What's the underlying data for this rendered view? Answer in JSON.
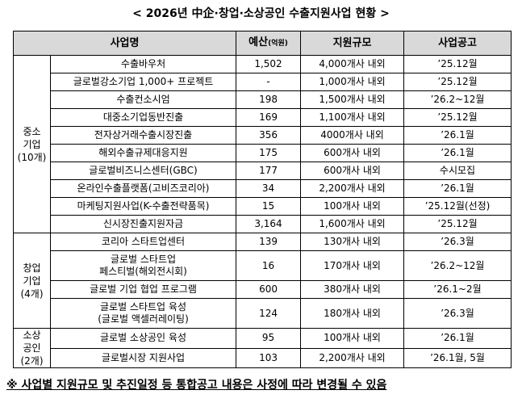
{
  "title": "< 2026년 中企·창업·소상공인 수출지원사업 현황 >",
  "table": {
    "header": [
      {
        "main": "사업명"
      },
      {
        "main": "예산",
        "unit": "(억원)"
      },
      {
        "main": "지원규모"
      },
      {
        "main": "사업공고"
      }
    ],
    "groups": [
      {
        "label": [
          "중소",
          "기업",
          "(10개)"
        ],
        "rows": [
          {
            "name": [
              "수출바우처"
            ],
            "budget": "1,502",
            "scale": "4,000개사 내외",
            "notice": "’25.12월"
          },
          {
            "name": [
              "글로벌강소기업 1,000+ 프로젝트"
            ],
            "budget": "-",
            "scale": "1,000개사 내외",
            "notice": "’25.12월"
          },
          {
            "name": [
              "수출컨소시엄"
            ],
            "budget": "198",
            "scale": "1,500개사 내외",
            "notice": "’26.2~12월"
          },
          {
            "name": [
              "대중소기업동반진출"
            ],
            "budget": "169",
            "scale": "1,100개사 내외",
            "notice": "’25.12월"
          },
          {
            "name": [
              "전자상거래수출시장진출"
            ],
            "budget": "356",
            "scale": "4000개사 내외",
            "notice": "’26.1월"
          },
          {
            "name": [
              "해외수출규제대응지원"
            ],
            "budget": "175",
            "scale": "600개사 내외",
            "notice": "’26.1월"
          },
          {
            "name": [
              "글로벌비즈니스센터(GBC)"
            ],
            "budget": "177",
            "scale": "600개사 내외",
            "notice": "수시모집"
          },
          {
            "name": [
              "온라인수출플랫폼(고비즈코리아)"
            ],
            "budget": "34",
            "scale": "2,200개사 내외",
            "notice": "’26.1월"
          },
          {
            "name": [
              "마케팅지원사업(K-수출전략품목)"
            ],
            "budget": "15",
            "scale": "100개사 내외",
            "notice": "’25.12월(선정)"
          },
          {
            "name": [
              "신시장진출지원자금"
            ],
            "budget": "3,164",
            "scale": "1,600개사 내외",
            "notice": "’25.12월"
          }
        ]
      },
      {
        "label": [
          "창업",
          "기업",
          "(4개)"
        ],
        "rows": [
          {
            "name": [
              "코리아 스타트업센터"
            ],
            "budget": "139",
            "scale": "130개사 내외",
            "notice": "’26.3월"
          },
          {
            "name": [
              "글로벌 스타트업",
              "페스티벌(해외전시회)"
            ],
            "budget": "16",
            "scale": "170개사 내외",
            "notice": "’26.2~12월"
          },
          {
            "name": [
              "글로벌 기업 협업 프로그램"
            ],
            "budget": "600",
            "scale": "380개사 내외",
            "notice": "’26.1~2월"
          },
          {
            "name": [
              "글로벌 스타트업 육성",
              "(글로벌 액셀러레이팅)"
            ],
            "budget": "124",
            "scale": "180개사 내외",
            "notice": "’26.3월"
          }
        ]
      },
      {
        "label": [
          "소상",
          "공인",
          "(2개)"
        ],
        "rows": [
          {
            "name": [
              "글로벌 소상공인 육성"
            ],
            "budget": "95",
            "scale": "100개사 내외",
            "notice": "’26.1월"
          },
          {
            "name": [
              "글로벌시장 지원사업"
            ],
            "budget": "103",
            "scale": "2,200개사 내외",
            "notice": "’26.1월, 5월"
          }
        ]
      }
    ]
  },
  "note": "※ 사업별 지원규모 및 추진일정 등 통합공고 내용은 사정에 따라 변경될 수 있음"
}
